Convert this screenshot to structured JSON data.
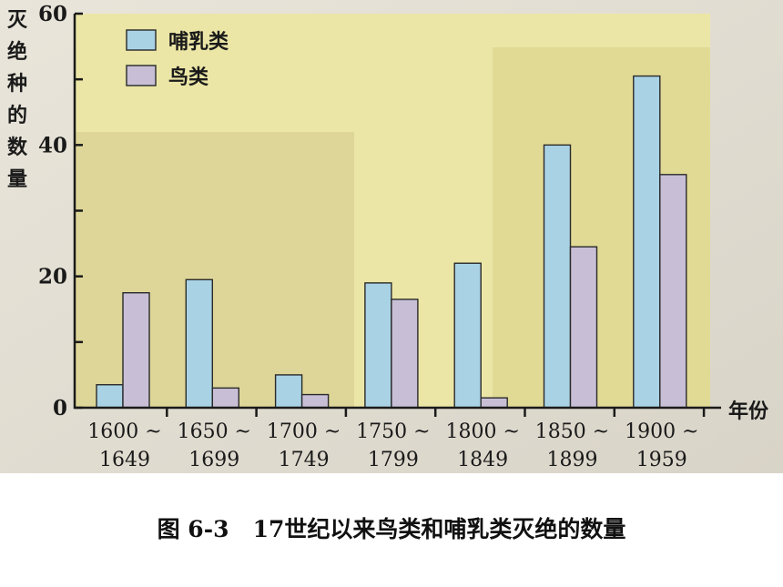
{
  "chart_data": {
    "type": "bar",
    "title": "",
    "ylabel": "灭绝种的数量",
    "xlabel": "年份",
    "ylim": [
      0,
      60
    ],
    "yticks": [
      0,
      10,
      20,
      30,
      40,
      50,
      60
    ],
    "ytick_labels": [
      "0",
      "",
      "20",
      "",
      "40",
      "",
      "60"
    ],
    "categories": [
      [
        "1600 ~",
        "1649"
      ],
      [
        "1650 ~",
        "1699"
      ],
      [
        "1700 ~",
        "1749"
      ],
      [
        "1750 ~",
        "1799"
      ],
      [
        "1800 ~",
        "1849"
      ],
      [
        "1850 ~",
        "1899"
      ],
      [
        "1900 ~",
        "1959"
      ]
    ],
    "series": [
      {
        "name": "哺乳类",
        "values": [
          3.5,
          19.5,
          5,
          19,
          22,
          40,
          50.5
        ],
        "color": "#a9d3e5"
      },
      {
        "name": "鸟类",
        "values": [
          17.5,
          3,
          2,
          16.5,
          1.5,
          24.5,
          35.5
        ],
        "color": "#c8bfd6"
      }
    ],
    "legend_placement": "top-left",
    "grid": false
  },
  "caption": {
    "figure_no": "图 6-3",
    "text": "17世纪以来鸟类和哺乳类灭绝的数量"
  }
}
